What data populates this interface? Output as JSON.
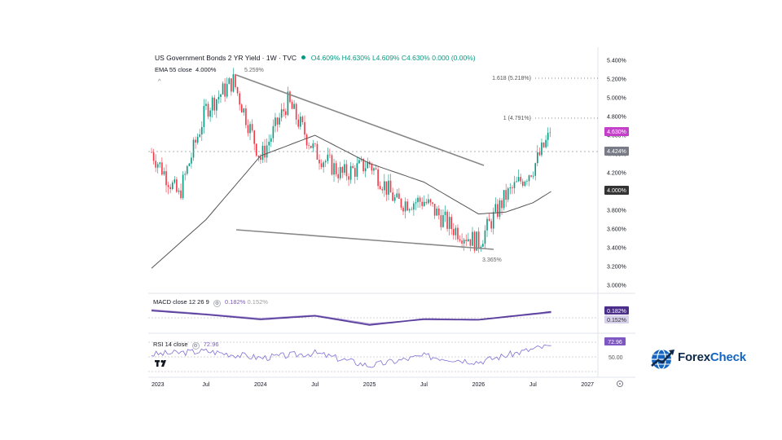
{
  "header": {
    "symbol_title": "US Government Bonds 2 YR Yield · 1W · TVC",
    "open": "O4.609%",
    "high": "H4.630%",
    "low": "L4.609%",
    "close": "C4.630%",
    "change": "0.000 (0.00%)",
    "ema_label": "EMA 55 close",
    "ema_value": "4.000%"
  },
  "macd": {
    "label": "MACD close 12 26 9",
    "value1": "0.182%",
    "value2": "0.152%"
  },
  "rsi": {
    "label": "RSI 14 close",
    "value": "72.96"
  },
  "price_axis": [
    "5.400%",
    "5.200%",
    "5.000%",
    "4.800%",
    "4.600%",
    "4.400%",
    "4.200%",
    "4.000%",
    "3.800%",
    "3.600%",
    "3.400%",
    "3.200%",
    "3.000%"
  ],
  "price_tags": {
    "last": "4.630%",
    "hline": "4.424%",
    "ema": "4.000%"
  },
  "macd_tags": [
    "0.182%",
    "0.152%"
  ],
  "rsi_tags": [
    "72.96",
    "50.00"
  ],
  "time_axis": [
    "2023",
    "Jul",
    "2024",
    "Jul",
    "2025",
    "Jul",
    "2026",
    "Jul",
    "2027"
  ],
  "annotations": {
    "peak": "5.259%",
    "trough": "3.365%",
    "fib_1618": "1.618 (5.218%)",
    "fib_1": "1 (4.791%)"
  },
  "colors": {
    "up": "#089981",
    "down": "#f23645",
    "ema": "#555555",
    "macd": "#5b3f9e",
    "signal": "#b8a9d9",
    "rsi": "#7e6fd4",
    "last_tag": "#c341c9"
  },
  "logo": {
    "brand_a": "Forex",
    "brand_b": "Check"
  },
  "chart_data": {
    "type": "candlestick",
    "title": "US Government Bonds 2 YR Yield",
    "interval": "1W",
    "source": "TVC",
    "y_unit": "%",
    "ylim": [
      3.0,
      5.4
    ],
    "x": [
      "2023-01",
      "2023-04",
      "2023-07",
      "2023-10",
      "2024-01",
      "2024-04",
      "2024-07",
      "2024-10",
      "2025-01",
      "2025-04",
      "2025-07",
      "2025-10",
      "2026-01",
      "2026-04",
      "2026-07",
      "2026-09"
    ],
    "close": [
      4.42,
      3.95,
      4.88,
      5.18,
      4.35,
      4.96,
      4.42,
      4.18,
      4.3,
      3.88,
      3.9,
      3.62,
      3.45,
      3.95,
      4.25,
      4.63
    ],
    "series": [
      {
        "name": "EMA 55 close",
        "x": [
          "2023-01",
          "2023-07",
          "2024-01",
          "2024-07",
          "2025-01",
          "2025-07",
          "2026-01",
          "2026-04",
          "2026-07",
          "2026-09"
        ],
        "values": [
          3.18,
          3.7,
          4.38,
          4.6,
          4.3,
          4.1,
          3.76,
          3.78,
          3.88,
          4.0
        ]
      },
      {
        "name": "MACD",
        "x": [
          "2023-01",
          "2023-07",
          "2024-01",
          "2024-07",
          "2025-01",
          "2025-07",
          "2026-01",
          "2026-07",
          "2026-09"
        ],
        "values": [
          0.22,
          0.1,
          -0.05,
          0.06,
          -0.22,
          -0.04,
          -0.06,
          0.12,
          0.182
        ]
      },
      {
        "name": "Signal",
        "x": [
          "2023-01",
          "2023-07",
          "2024-01",
          "2024-07",
          "2025-01",
          "2025-07",
          "2026-01",
          "2026-07",
          "2026-09"
        ],
        "values": [
          0.25,
          0.12,
          -0.02,
          0.08,
          -0.18,
          -0.06,
          -0.07,
          0.1,
          0.152
        ]
      },
      {
        "name": "RSI 14 close",
        "x": [
          "2023-01",
          "2023-07",
          "2024-01",
          "2024-07",
          "2025-01",
          "2025-07",
          "2026-01",
          "2026-07",
          "2026-09"
        ],
        "values": [
          55,
          62,
          48,
          58,
          32,
          52,
          40,
          66,
          72.96
        ]
      }
    ],
    "trendlines": [
      {
        "from": [
          "2023-10",
          5.259
        ],
        "to": [
          "2026-02",
          4.28
        ]
      },
      {
        "from": [
          "2023-10",
          3.59
        ],
        "to": [
          "2026-02",
          3.365
        ]
      }
    ],
    "hline": 4.424,
    "fib_levels": [
      {
        "label": "1.618",
        "value": 5.218
      },
      {
        "label": "1",
        "value": 4.791
      }
    ]
  }
}
